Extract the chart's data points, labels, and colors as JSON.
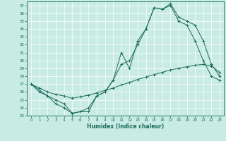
{
  "xlabel": "Humidex (Indice chaleur)",
  "xlim": [
    -0.5,
    23.5
  ],
  "ylim": [
    23,
    37.5
  ],
  "yticks": [
    23,
    24,
    25,
    26,
    27,
    28,
    29,
    30,
    31,
    32,
    33,
    34,
    35,
    36,
    37
  ],
  "xticks": [
    0,
    1,
    2,
    3,
    4,
    5,
    6,
    7,
    8,
    9,
    10,
    11,
    12,
    13,
    14,
    15,
    16,
    17,
    18,
    19,
    20,
    21,
    22,
    23
  ],
  "bg_color": "#c8ebe3",
  "grid_color": "#ffffff",
  "line_color": "#1a6b5a",
  "line1_x": [
    0,
    1,
    2,
    3,
    4,
    5,
    6,
    7,
    8,
    9,
    10,
    11,
    12,
    13,
    14,
    15,
    16,
    17,
    18,
    19,
    20,
    21,
    22,
    23
  ],
  "line1_y": [
    27.0,
    26.0,
    25.5,
    24.5,
    24.0,
    23.3,
    23.5,
    23.5,
    25.5,
    26.0,
    27.5,
    31.0,
    29.0,
    32.5,
    34.0,
    36.7,
    36.5,
    37.0,
    35.0,
    34.5,
    32.5,
    30.0,
    28.0,
    27.5
  ],
  "line2_x": [
    0,
    2,
    3,
    4,
    5,
    6,
    7,
    8,
    9,
    10,
    11,
    12,
    13,
    14,
    15,
    16,
    17,
    18,
    19,
    20,
    21,
    22,
    23
  ],
  "line2_y": [
    27.0,
    25.5,
    25.0,
    24.5,
    23.3,
    23.5,
    24.0,
    25.5,
    26.0,
    27.5,
    29.5,
    30.0,
    32.0,
    34.0,
    36.7,
    36.5,
    37.2,
    35.5,
    35.0,
    34.5,
    32.5,
    29.5,
    28.0
  ],
  "line3_x": [
    0,
    1,
    2,
    3,
    4,
    5,
    6,
    7,
    8,
    9,
    10,
    11,
    12,
    13,
    14,
    15,
    16,
    17,
    18,
    19,
    20,
    21,
    22,
    23
  ],
  "line3_y": [
    27.0,
    26.5,
    26.0,
    25.7,
    25.5,
    25.2,
    25.4,
    25.6,
    25.9,
    26.2,
    26.5,
    26.9,
    27.2,
    27.6,
    27.9,
    28.2,
    28.5,
    28.8,
    29.0,
    29.2,
    29.4,
    29.5,
    29.3,
    28.5
  ]
}
